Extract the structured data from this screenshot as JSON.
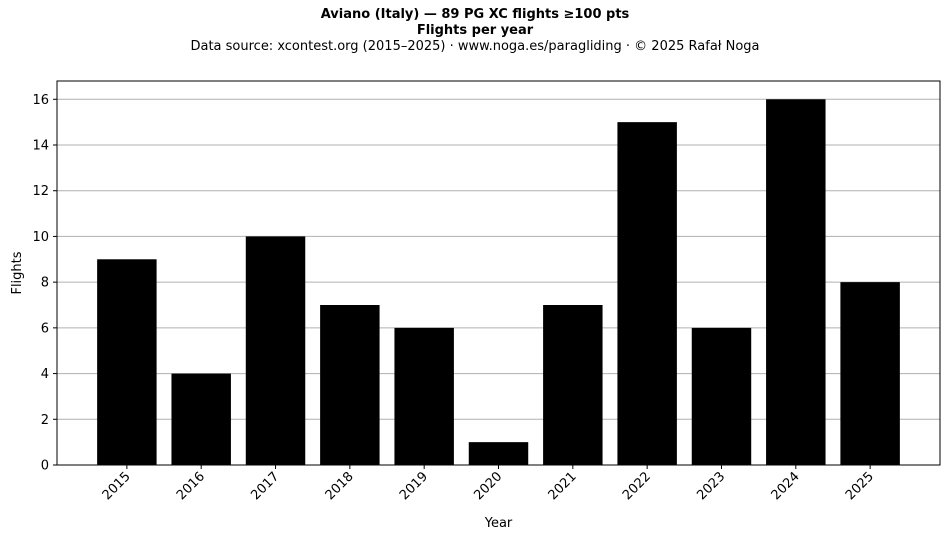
{
  "header": {
    "title": "Aviano (Italy)  —  89 PG XC flights ≥100 pts",
    "subtitle": "Flights per year",
    "source": "Data source: xcontest.org (2015–2025)  ·  www.noga.es/paragliding  ·  © 2025 Rafał Noga"
  },
  "chart_data": {
    "type": "bar",
    "title": "Aviano (Italy)  —  89 PG XC flights ≥100 pts",
    "subtitle": "Flights per year",
    "xlabel": "Year",
    "ylabel": "Flights",
    "categories": [
      "2015",
      "2016",
      "2017",
      "2018",
      "2019",
      "2020",
      "2021",
      "2022",
      "2023",
      "2024",
      "2025"
    ],
    "values": [
      9,
      4,
      10,
      7,
      6,
      1,
      7,
      15,
      6,
      16,
      8
    ],
    "ylim": [
      0,
      16.8
    ],
    "yticks": [
      0,
      2,
      4,
      6,
      8,
      10,
      12,
      14,
      16
    ],
    "grid": "y",
    "bar_color": "#000000",
    "grid_color": "#b0b0b0"
  }
}
